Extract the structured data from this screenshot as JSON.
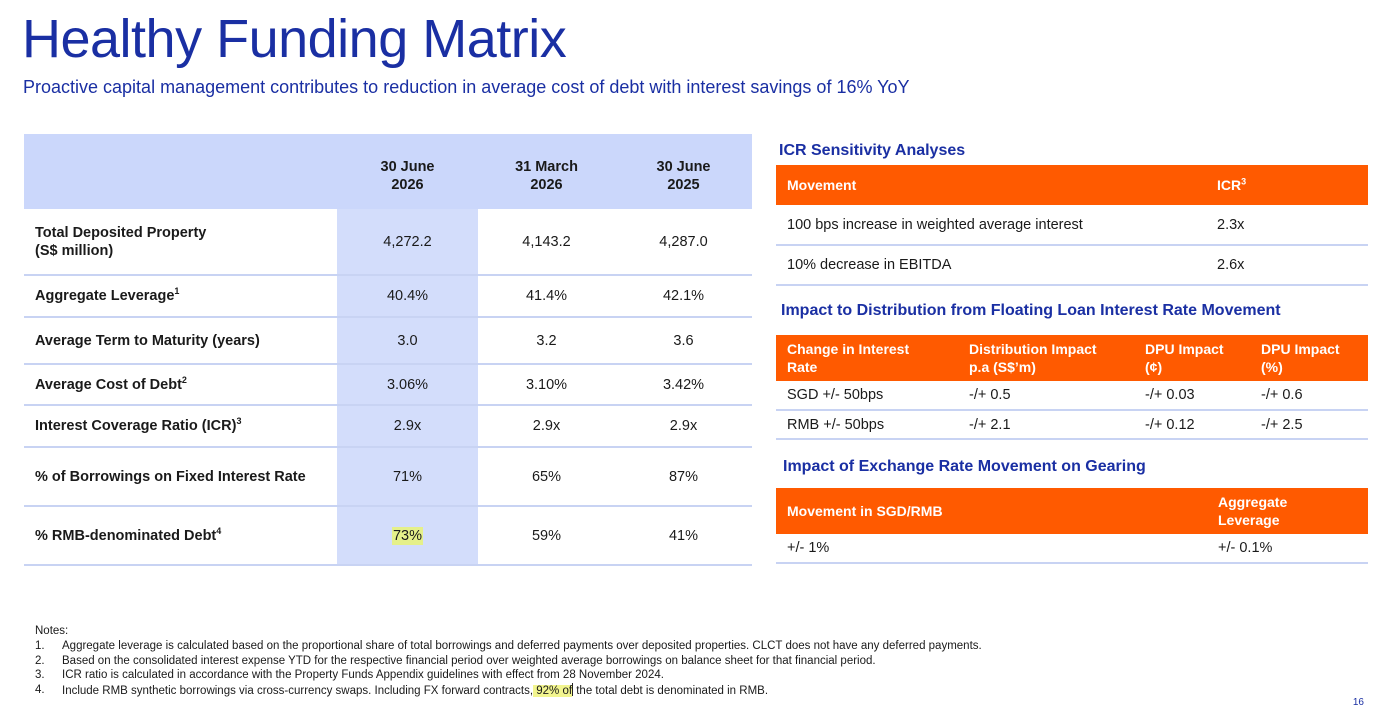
{
  "header": {
    "title": "Healthy Funding Matrix",
    "subtitle": "Proactive capital management contributes to reduction in average cost of debt with interest savings of 16% YoY"
  },
  "funding_table": {
    "columns": [
      {
        "line1": "30 June",
        "line2": "2026"
      },
      {
        "line1": "31 March",
        "line2": "2026"
      },
      {
        "line1": "30 June",
        "line2": "2025"
      }
    ],
    "rows": [
      {
        "label": "Total Deposited Property",
        "label2": "(S$ million)",
        "sup": "",
        "values": [
          "4,272.2",
          "4,143.2",
          "4,287.0"
        ]
      },
      {
        "label": "Aggregate Leverage",
        "label2": "",
        "sup": "1",
        "values": [
          "40.4%",
          "41.4%",
          "42.1%"
        ]
      },
      {
        "label": "Average Term to Maturity (years)",
        "label2": "",
        "sup": "",
        "values": [
          "3.0",
          "3.2",
          "3.6"
        ]
      },
      {
        "label": "Average Cost of Debt",
        "label2": "",
        "sup": "2",
        "values": [
          "3.06%",
          "3.10%",
          "3.42%"
        ]
      },
      {
        "label": "Interest Coverage Ratio (ICR)",
        "label2": "",
        "sup": "3",
        "values": [
          "2.9x",
          "2.9x",
          "2.9x"
        ]
      },
      {
        "label": "% of Borrowings on Fixed Interest Rate",
        "label2": "",
        "sup": "",
        "values": [
          "71%",
          "65%",
          "87%"
        ]
      },
      {
        "label": "% RMB-denominated Debt",
        "label2": "",
        "sup": "4",
        "values": [
          "73%",
          "59%",
          "41%"
        ]
      }
    ]
  },
  "icr_sensitivity": {
    "title": "ICR Sensitivity Analyses",
    "headers": {
      "movement": "Movement",
      "icr": "ICR",
      "icr_sup": "3"
    },
    "rows": [
      {
        "movement": "100 bps increase in weighted average interest",
        "icr": "2.3x"
      },
      {
        "movement": "10% decrease in EBITDA",
        "icr": "2.6x"
      }
    ]
  },
  "distribution_impact": {
    "title": "Impact to Distribution from Floating Loan Interest Rate Movement",
    "headers": [
      {
        "line1": "Change in Interest",
        "line2": "Rate"
      },
      {
        "line1": "Distribution Impact",
        "line2": "p.a (S$’m)"
      },
      {
        "line1": "DPU Impact",
        "line2": "(¢)"
      },
      {
        "line1": "DPU Impact",
        "line2": "(%)"
      }
    ],
    "rows": [
      [
        "SGD +/-  50bps",
        "-/+ 0.5",
        "-/+ 0.03",
        "-/+ 0.6"
      ],
      [
        "RMB +/- 50bps",
        "-/+ 2.1",
        "-/+ 0.12",
        "-/+ 2.5"
      ]
    ]
  },
  "exchange_impact": {
    "title": "Impact of Exchange Rate Movement on Gearing",
    "headers": {
      "movement": "Movement in SGD/RMB",
      "lev1": "Aggregate",
      "lev2": "Leverage"
    },
    "rows": [
      {
        "movement": "+/- 1%",
        "leverage": "+/- 0.1%"
      }
    ]
  },
  "notes": {
    "heading": "Notes:",
    "items": [
      {
        "num": "1.",
        "text": "Aggregate leverage is calculated based on the proportional share of total borrowings and deferred payments over deposited properties. CLCT does not have any deferred payments."
      },
      {
        "num": "2.",
        "text": "Based on the consolidated interest expense YTD for the respective financial period over weighted average borrowings on balance sheet for that financial period."
      },
      {
        "num": "3.",
        "text": "ICR ratio is calculated in accordance with the Property Funds Appendix guidelines with effect from 28 November 2024."
      },
      {
        "num": "4.",
        "text_before": "Include RMB synthetic borrowings via cross-currency swaps. Including FX forward contracts,",
        "text_highlight": " 92% of",
        "text_after": " the total debt is denominated in RMB."
      }
    ]
  },
  "page_number": "16",
  "colors": {
    "brand_blue": "#1a2fa3",
    "header_lilac": "#cbd7fb",
    "accent_orange": "#ff5a00",
    "highlight_yellow": "#e5f08a"
  }
}
